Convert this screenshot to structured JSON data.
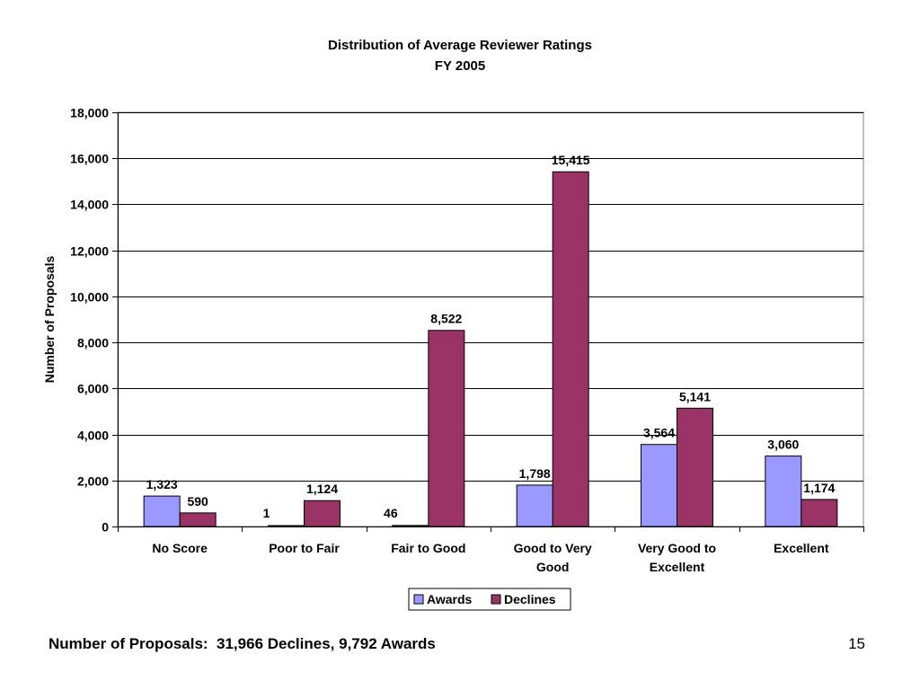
{
  "chart_data": {
    "type": "bar",
    "title": "Distribution of Average Reviewer Ratings",
    "subtitle": "FY 2005",
    "xlabel": "",
    "ylabel": "Number of Proposals",
    "ylim": [
      0,
      18000
    ],
    "yticks": [
      0,
      2000,
      4000,
      6000,
      8000,
      10000,
      12000,
      14000,
      16000,
      18000
    ],
    "ytick_labels": [
      "0",
      "2,000",
      "4,000",
      "6,000",
      "8,000",
      "10,000",
      "12,000",
      "14,000",
      "16,000",
      "18,000"
    ],
    "grid": true,
    "legend_position": "bottom",
    "categories": [
      [
        "No Score"
      ],
      [
        "Poor to Fair"
      ],
      [
        "Fair to Good"
      ],
      [
        "Good to Very",
        "Good"
      ],
      [
        "Very Good to",
        "Excellent"
      ],
      [
        "Excellent"
      ]
    ],
    "series": [
      {
        "name": "Awards",
        "color": "#9999ff",
        "values": [
          1323,
          1,
          46,
          1798,
          3564,
          3060
        ],
        "labels": [
          "1,323",
          "1",
          "46",
          "1,798",
          "3,564",
          "3,060"
        ]
      },
      {
        "name": "Declines",
        "color": "#993366",
        "values": [
          590,
          1124,
          8522,
          15415,
          5141,
          1174
        ],
        "labels": [
          "590",
          "1,124",
          "8,522",
          "15,415",
          "5,141",
          "1,174"
        ]
      }
    ]
  },
  "footer": {
    "caption": "Number of Proposals:  31,966 Declines, 9,792 Awards",
    "page_number": "15"
  }
}
